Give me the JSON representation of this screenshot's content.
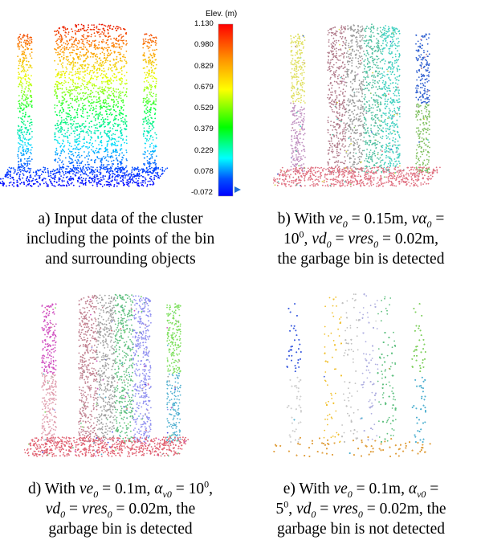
{
  "colorbar": {
    "title": "Elev. (m)",
    "ticks": [
      "1.130",
      "0.980",
      "0.829",
      "0.679",
      "0.529",
      "0.379",
      "0.229",
      "0.078",
      "-0.072"
    ],
    "gradient": [
      "#ff0000",
      "#ff8000",
      "#ffff00",
      "#00ff00",
      "#00ffff",
      "#0040ff",
      "#0000ff"
    ],
    "marker_color": "#1f6fd6"
  },
  "panels": [
    {
      "id": "a",
      "coloring": "elevation",
      "caption": {
        "line1": "a) Input data of the cluster",
        "line2": "including the points of the bin",
        "line3": "and surrounding objects"
      }
    },
    {
      "id": "b",
      "coloring": "segments",
      "palette": [
        "#e07080",
        "#b07a8a",
        "#9a9a9a",
        "#50c0a0",
        "#40d0c0",
        "#d0d040",
        "#e0e060",
        "#3060d0",
        "#c090c0",
        "#80c060"
      ],
      "caption": {
        "prefix": "b) With ",
        "v1": "ve",
        "v1sub": "0",
        "eq1": " = 0.15m, ",
        "v2": "vα",
        "v2sub": "0",
        "eq2": " =",
        "l2a": "10",
        "l2sup": "0",
        "l2b": ", ",
        "v3": "vd",
        "v3sub": "0",
        "eq3": " = ",
        "v4": "vres",
        "v4sub": "0",
        "eq4": " = 0.02m,",
        "line3": "the garbage bin is detected"
      }
    },
    {
      "id": "d",
      "coloring": "segments",
      "palette": [
        "#e06070",
        "#c08090",
        "#a0a0a0",
        "#60c080",
        "#9090f0",
        "#4040e0",
        "#d050c0",
        "#80e060",
        "#e0a0b0",
        "#50b0d0"
      ],
      "caption": {
        "prefix": "d) With ",
        "v1": "ve",
        "v1sub": "0",
        "eq1": " = 0.1m, ",
        "v2": "α",
        "v2sub": "v0",
        "eq2": " = 10",
        "eq2sup": "0",
        "eq2end": ",",
        "v3": "vd",
        "v3sub": "0",
        "eq3": " = ",
        "v4": "vres",
        "v4sub": "0",
        "eq4": " = 0.02m, the",
        "line3": "garbage bin is detected"
      }
    },
    {
      "id": "e",
      "coloring": "segments",
      "palette": [
        "#e0a040",
        "#f0c030",
        "#c0c0c0",
        "#b0b0e0",
        "#60c080",
        "#e07080",
        "#4060e0",
        "#80d060",
        "#d0d0d0",
        "#50b0d0"
      ],
      "caption": {
        "prefix": "e) With ",
        "v1": "ve",
        "v1sub": "0",
        "eq1": " = 0.1m, ",
        "v2": "α",
        "v2sub": "v0",
        "eq2": " =",
        "l2a": "5",
        "l2sup": "0",
        "l2b": ", ",
        "v3": "vd",
        "v3sub": "0",
        "eq3": " = ",
        "v4": "vres",
        "v4sub": "0",
        "eq4": " = 0.02m, the",
        "line3": "garbage bin is not detected"
      }
    }
  ]
}
